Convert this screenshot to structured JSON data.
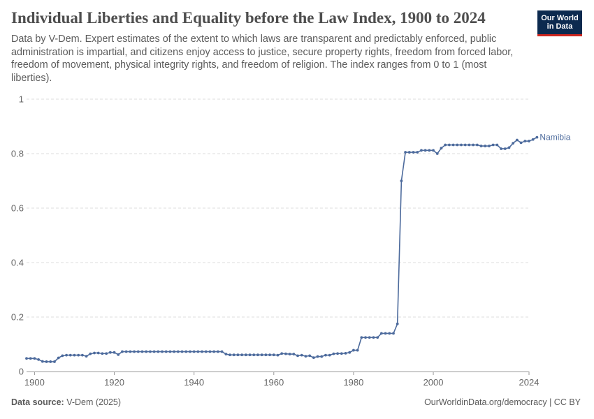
{
  "header": {
    "title": "Individual Liberties and Equality before the Law Index, 1900 to 2024",
    "subtitle": "Data by V-Dem. Expert estimates of the extent to which laws are transparent and predictably enforced, public administration is impartial, and citizens enjoy access to justice, secure property rights, freedom from forced labor, freedom of movement, physical integrity rights, and freedom of religion. The index ranges from 0 to 1 (most liberties)."
  },
  "logo": {
    "line1": "Our World",
    "line2": "in Data",
    "bg_color": "#0c2a4f",
    "accent_color": "#ce261e"
  },
  "footer": {
    "source_label": "Data source:",
    "source_value": "V-Dem (2025)",
    "link_text": "OurWorldinData.org/democracy | CC BY"
  },
  "chart_data": {
    "type": "line",
    "title": "Individual Liberties and Equality before the Law Index, 1900 to 2024",
    "xlabel": "",
    "ylabel": "",
    "xlim": [
      1898,
      1024
    ],
    "xlim_note_removed": true,
    "ylim": [
      0,
      1
    ],
    "x_ticks": [
      1900,
      1920,
      1940,
      1960,
      1980,
      2000,
      2024
    ],
    "y_ticks": [
      0,
      0.2,
      0.4,
      0.6,
      0.8,
      1
    ],
    "y_tick_labels": [
      "0",
      "0.2",
      "0.4",
      "0.6",
      "0.8",
      "1"
    ],
    "grid": "horizontal dashed",
    "series_color": "#4c6a9c",
    "series": [
      {
        "name": "Namibia",
        "start_year": 1898,
        "values": [
          0.048,
          0.048,
          0.048,
          0.044,
          0.037,
          0.036,
          0.036,
          0.036,
          0.05,
          0.058,
          0.06,
          0.06,
          0.06,
          0.06,
          0.06,
          0.056,
          0.065,
          0.068,
          0.068,
          0.066,
          0.066,
          0.07,
          0.07,
          0.062,
          0.073,
          0.073,
          0.073,
          0.073,
          0.073,
          0.073,
          0.073,
          0.073,
          0.073,
          0.073,
          0.073,
          0.073,
          0.073,
          0.073,
          0.073,
          0.073,
          0.073,
          0.073,
          0.073,
          0.073,
          0.073,
          0.073,
          0.073,
          0.073,
          0.073,
          0.073,
          0.064,
          0.061,
          0.061,
          0.061,
          0.061,
          0.061,
          0.061,
          0.061,
          0.061,
          0.061,
          0.061,
          0.061,
          0.061,
          0.06,
          0.066,
          0.065,
          0.064,
          0.064,
          0.058,
          0.06,
          0.056,
          0.058,
          0.051,
          0.055,
          0.055,
          0.06,
          0.06,
          0.065,
          0.066,
          0.066,
          0.067,
          0.07,
          0.078,
          0.078,
          0.125,
          0.125,
          0.125,
          0.125,
          0.125,
          0.14,
          0.14,
          0.14,
          0.14,
          0.175,
          0.7,
          0.805,
          0.805,
          0.805,
          0.805,
          0.812,
          0.812,
          0.812,
          0.812,
          0.8,
          0.82,
          0.832,
          0.832,
          0.832,
          0.832,
          0.832,
          0.832,
          0.832,
          0.832,
          0.832,
          0.828,
          0.828,
          0.828,
          0.832,
          0.832,
          0.818,
          0.818,
          0.822,
          0.838,
          0.85,
          0.84,
          0.846,
          0.846,
          0.852,
          0.86
        ]
      }
    ]
  }
}
